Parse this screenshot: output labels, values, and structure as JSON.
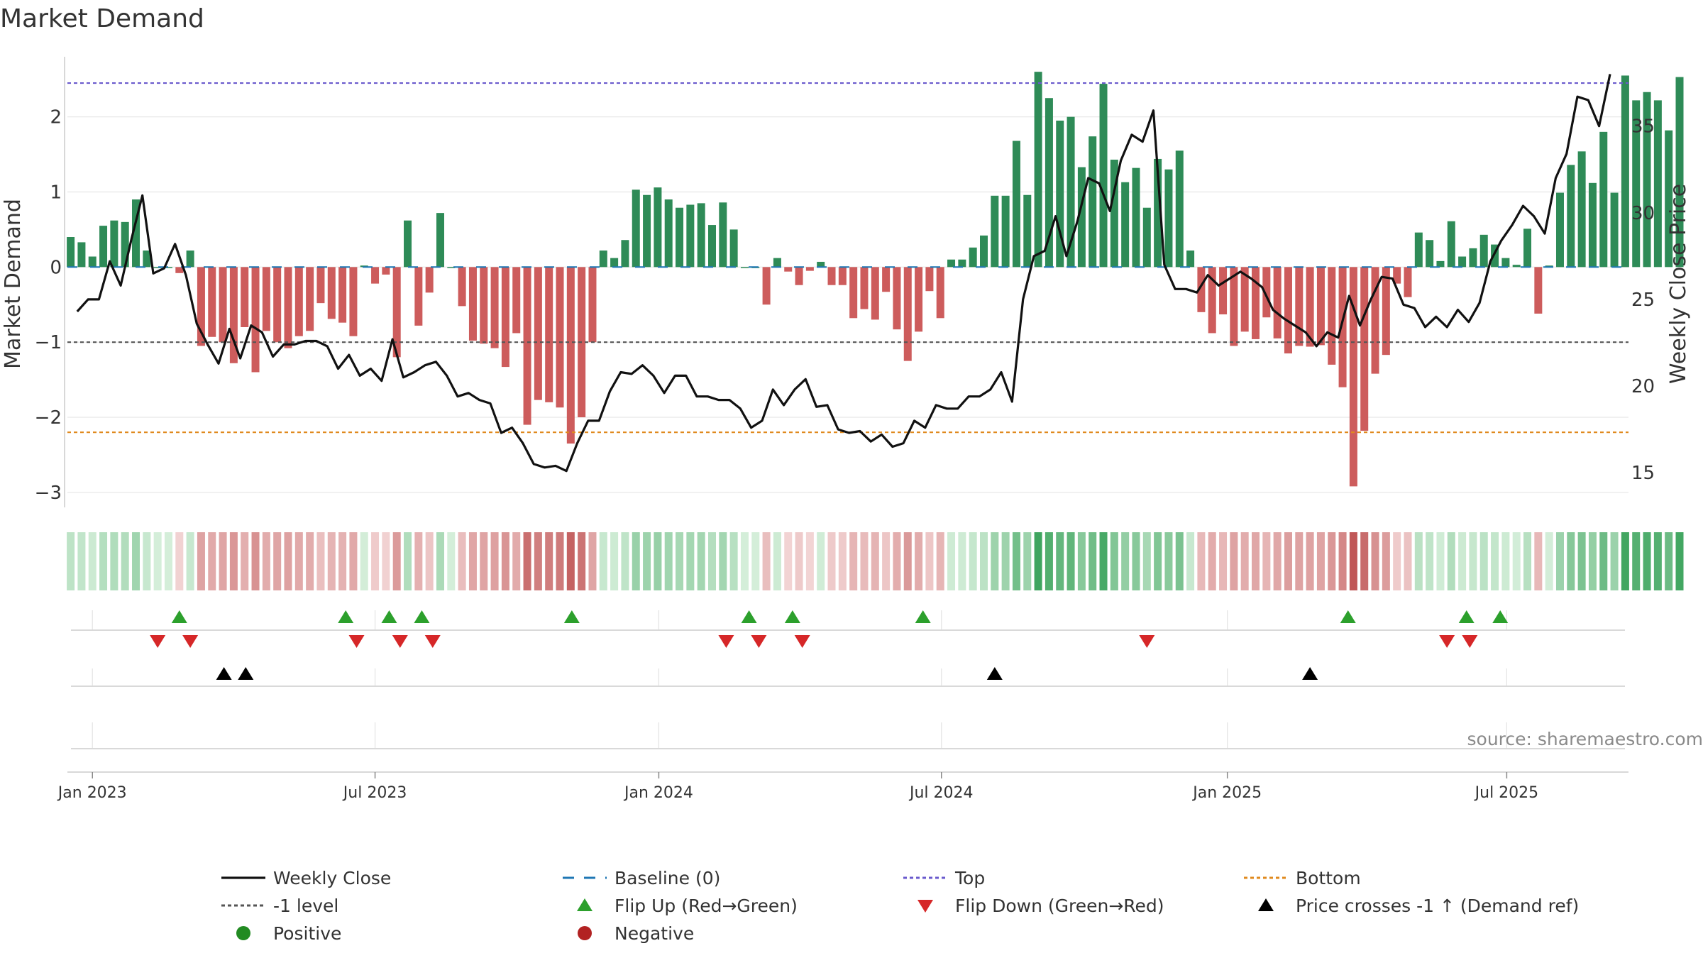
{
  "chart_data": {
    "type": "bar",
    "title": "Market Demand",
    "ylabel_left": "Market Demand",
    "ylabel_right": "Weekly Close Price",
    "ylim_left": [
      -3.2,
      2.8
    ],
    "ylim_right": [
      13.0,
      39.0
    ],
    "yticks_left": [
      2,
      1,
      0,
      -1,
      -2,
      -3
    ],
    "ytick_labels_left": [
      "2",
      "1",
      "0",
      "−1",
      "−2",
      "−3"
    ],
    "yticks_right": [
      35,
      30,
      25,
      20,
      15
    ],
    "ytick_labels_right": [
      "35",
      "30",
      "25",
      "20",
      "15"
    ],
    "date_ticks": [
      {
        "label": "Jan 2023",
        "week": 0
      },
      {
        "label": "Jul 2023",
        "week": 26
      },
      {
        "label": "Jan 2024",
        "week": 52.1
      },
      {
        "label": "Jul 2024",
        "week": 78.1
      },
      {
        "label": "Jan 2025",
        "week": 104.4
      },
      {
        "label": "Jul 2025",
        "week": 130.1
      }
    ],
    "week_range": [
      -2.3,
      141.3
    ],
    "reference_lines": [
      {
        "name": "Top",
        "value": 2.45,
        "color": "#6a5acd"
      },
      {
        "name": "-1 level",
        "value": -1.0,
        "color": "#555555"
      },
      {
        "name": "Bottom",
        "value": -2.2,
        "color": "#e08a1e"
      }
    ],
    "series": [
      {
        "name": "Market Demand",
        "start_week": -2,
        "values": [
          0.4,
          0.33,
          0.14,
          0.55,
          0.62,
          0.6,
          0.9,
          0.22,
          0,
          0,
          -0.08,
          0.22,
          -1.05,
          -0.93,
          -1.0,
          -1.28,
          -0.8,
          -1.4,
          -0.85,
          -1.0,
          -1.08,
          -0.92,
          -0.85,
          -0.48,
          -0.69,
          -0.74,
          -0.92,
          0.02,
          -0.22,
          -0.1,
          -1.2,
          0.62,
          -0.78,
          -0.34,
          0.72,
          0,
          -0.52,
          -0.98,
          -1.02,
          -1.08,
          -1.33,
          -0.88,
          -2.1,
          -1.77,
          -1.8,
          -1.87,
          -2.35,
          -2.0,
          -1.0,
          0.22,
          0.12,
          0.36,
          1.03,
          0.96,
          1.06,
          0.9,
          0.79,
          0.83,
          0.85,
          0.56,
          0.86,
          0.5,
          0,
          0,
          -0.5,
          0.12,
          -0.06,
          -0.24,
          -0.05,
          0.07,
          -0.24,
          -0.24,
          -0.68,
          -0.56,
          -0.7,
          -0.33,
          -0.83,
          -1.25,
          -0.86,
          -0.32,
          -0.68,
          0.1,
          0.1,
          0.26,
          0.42,
          0.95,
          0.95,
          1.68,
          0.96,
          2.6,
          2.25,
          1.95,
          2.0,
          1.33,
          1.74,
          2.44,
          1.43,
          1.13,
          1.32,
          0.79,
          1.44,
          1.3,
          1.55,
          0.22,
          -0.6,
          -0.88,
          -0.63,
          -1.05,
          -0.86,
          -0.96,
          -0.67,
          -0.95,
          -1.15,
          -1.05,
          -1.06,
          -1.04,
          -1.3,
          -1.6,
          -2.92,
          -2.18,
          -1.42,
          -1.17,
          -0.22,
          -0.4,
          0.46,
          0.36,
          0.08,
          0.61,
          0.14,
          0.25,
          0.43,
          0.3,
          0.12,
          0.03,
          0.51,
          -0.62,
          0.02,
          0.99,
          1.36,
          1.54,
          1.12,
          1.8,
          0.99,
          2.55,
          2.22,
          2.33,
          2.22,
          1.82,
          2.53
        ]
      },
      {
        "name": "Weekly Close",
        "start_week": -1.4,
        "values": [
          24.3,
          25.0,
          25.0,
          27.2,
          25.8,
          28.5,
          31.0,
          26.5,
          26.8,
          28.2,
          26.4,
          23.6,
          22.4,
          21.3,
          23.3,
          21.6,
          23.5,
          23.1,
          21.7,
          22.4,
          22.4,
          22.6,
          22.6,
          22.3,
          21.0,
          21.8,
          20.6,
          21.0,
          20.3,
          22.7,
          20.5,
          20.8,
          21.2,
          21.4,
          20.6,
          19.4,
          19.6,
          19.2,
          19.0,
          17.3,
          17.6,
          16.7,
          15.5,
          15.3,
          15.4,
          15.1,
          16.7,
          18.0,
          18.0,
          19.7,
          20.8,
          20.7,
          21.2,
          20.6,
          19.6,
          20.6,
          20.6,
          19.4,
          19.4,
          19.2,
          19.2,
          18.7,
          17.6,
          18.0,
          19.8,
          18.9,
          19.8,
          20.4,
          18.8,
          18.9,
          17.5,
          17.3,
          17.4,
          16.8,
          17.2,
          16.5,
          16.7,
          18.0,
          17.6,
          18.9,
          18.7,
          18.7,
          19.4,
          19.4,
          19.8,
          20.8,
          19.1,
          25.0,
          27.5,
          27.8,
          29.8,
          27.5,
          29.5,
          32.0,
          31.7,
          30.1,
          33.0,
          34.5,
          34.1,
          35.9,
          27.0,
          25.6,
          25.6,
          25.4,
          26.4,
          25.8,
          26.2,
          26.6,
          26.2,
          25.7,
          24.4,
          23.9,
          23.5,
          23.1,
          22.3,
          23.1,
          22.8,
          25.2,
          23.5,
          25.0,
          26.3,
          26.2,
          24.7,
          24.5,
          23.4,
          24.0,
          23.4,
          24.4,
          23.7,
          24.8,
          27.2,
          28.4,
          29.3,
          30.4,
          29.8,
          28.8,
          32.0,
          33.4,
          36.7,
          36.5,
          35.0,
          38.0
        ]
      }
    ],
    "heatmap_strip": {
      "name": "Demand heat strip",
      "palette": {
        "pos_deep": "#3fa55f",
        "pos_light": "#d4eed9",
        "neg_deep": "#c05757",
        "neg_light": "#f3d6d6"
      }
    },
    "markers": {
      "flip_up_weeks": [
        8,
        23.3,
        27.3,
        30.3,
        44.1,
        60.4,
        64.4,
        76.4,
        115.5,
        126.4,
        129.5
      ],
      "flip_down_weeks": [
        6,
        9,
        24.3,
        28.3,
        31.3,
        58.3,
        61.3,
        65.3,
        97.0,
        124.6,
        126.7
      ],
      "price_cross_weeks": [
        12.1,
        14.1,
        83.0,
        112.0
      ]
    },
    "source_text": "source: sharemaestro.com",
    "legend": [
      {
        "label": "Weekly Close",
        "symbol": "line",
        "color": "#111111"
      },
      {
        "label": "Baseline (0)",
        "symbol": "dashed",
        "color": "#1f77b4"
      },
      {
        "label": "Top",
        "symbol": "dotted",
        "color": "#6a5acd"
      },
      {
        "label": "Bottom",
        "symbol": "dotted",
        "color": "#e08a1e"
      },
      {
        "label": "-1 level",
        "symbol": "dotted",
        "color": "#555555"
      },
      {
        "label": "Flip Up (Red→Green)",
        "symbol": "triangle-up",
        "color": "#2ca02c"
      },
      {
        "label": "Flip Down (Green→Red)",
        "symbol": "triangle-down",
        "color": "#d62728"
      },
      {
        "label": "Price crosses -1 ↑ (Demand ref)",
        "symbol": "triangle-up",
        "color": "#000000"
      },
      {
        "label": "Positive",
        "symbol": "circle",
        "color": "#228b22"
      },
      {
        "label": "Negative",
        "symbol": "circle",
        "color": "#b22222"
      }
    ],
    "colors": {
      "positive_bar": "#2e8b57",
      "negative_bar": "#cd5c5c",
      "grid": "#e6e6e6"
    }
  }
}
